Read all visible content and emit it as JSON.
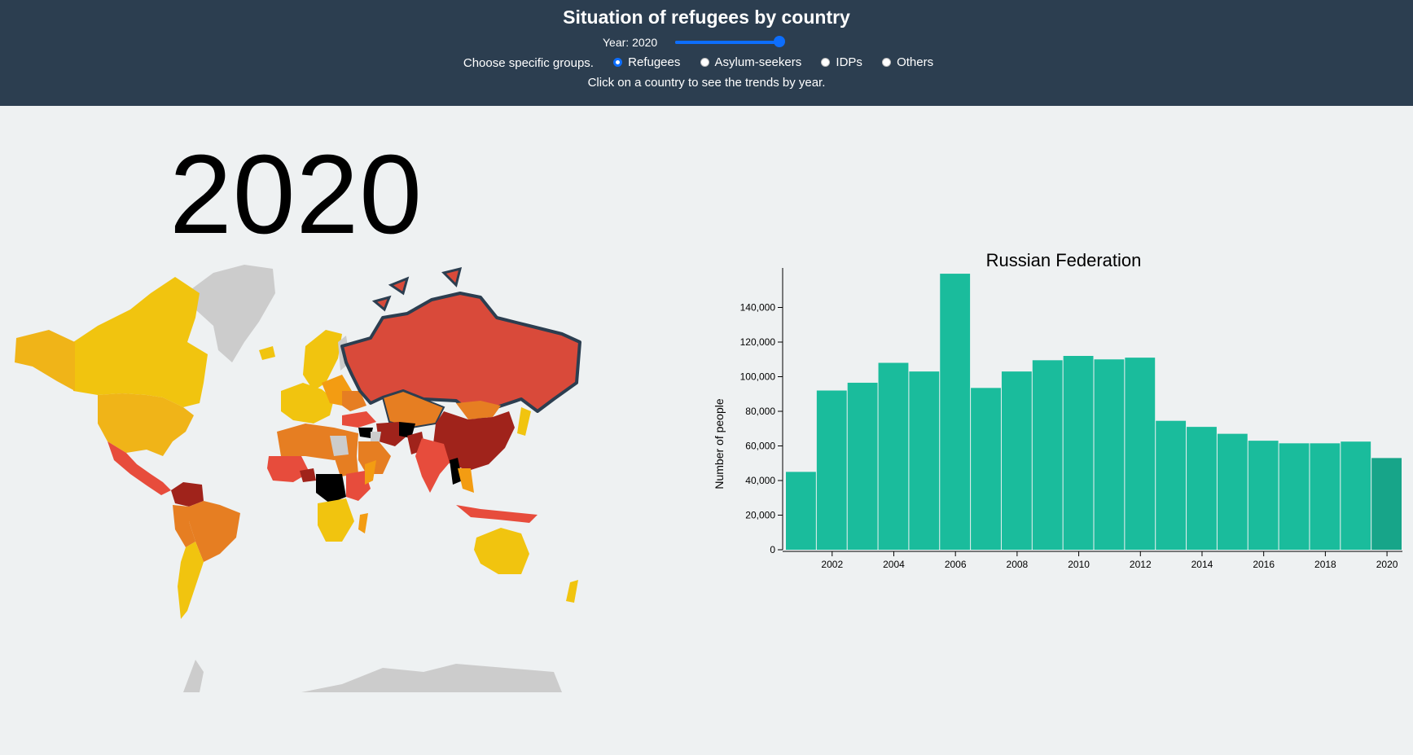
{
  "header": {
    "title": "Situation of refugees by country",
    "year_label": "Year: 2020",
    "slider": {
      "min": 2001,
      "max": 2020,
      "value": 2020
    },
    "groups_label": "Choose specific groups.",
    "groups": [
      {
        "label": "Refugees",
        "selected": true
      },
      {
        "label": "Asylum-seekers",
        "selected": false
      },
      {
        "label": "IDPs",
        "selected": false
      },
      {
        "label": "Others",
        "selected": false
      }
    ],
    "hint": "Click on a country to see the trends by year."
  },
  "map": {
    "year": "2020",
    "colors": {
      "low": "#f1c40f",
      "mid_low": "#f39c12",
      "mid": "#e67e22",
      "high": "#d94a3a",
      "very_high": "#a0231b",
      "max": "#000000",
      "no_data": "#cccccc",
      "selected_outline": "#2c3e50"
    },
    "selected_country": "Russian Federation"
  },
  "chart_data": {
    "type": "bar",
    "title": "Russian Federation",
    "ylabel": "Number of people",
    "xlabel": "",
    "categories": [
      2001,
      2002,
      2003,
      2004,
      2005,
      2006,
      2007,
      2008,
      2009,
      2010,
      2011,
      2012,
      2013,
      2014,
      2015,
      2016,
      2017,
      2018,
      2019,
      2020
    ],
    "values": [
      45000,
      92000,
      96500,
      108000,
      103000,
      159500,
      93500,
      103000,
      109500,
      112000,
      110000,
      111000,
      74500,
      71000,
      67000,
      63000,
      61500,
      61500,
      62500,
      53000
    ],
    "x_tick_labels": [
      "2002",
      "2004",
      "2006",
      "2008",
      "2010",
      "2012",
      "2014",
      "2016",
      "2018",
      "2020"
    ],
    "y_tick_labels": [
      "0",
      "20,000",
      "40,000",
      "60,000",
      "80,000",
      "100,000",
      "120,000",
      "140,000"
    ],
    "ylim": [
      0,
      160000
    ],
    "bar_color": "#1abc9c",
    "highlight_color": "#17a589",
    "highlight_category": 2020,
    "grid": false
  }
}
